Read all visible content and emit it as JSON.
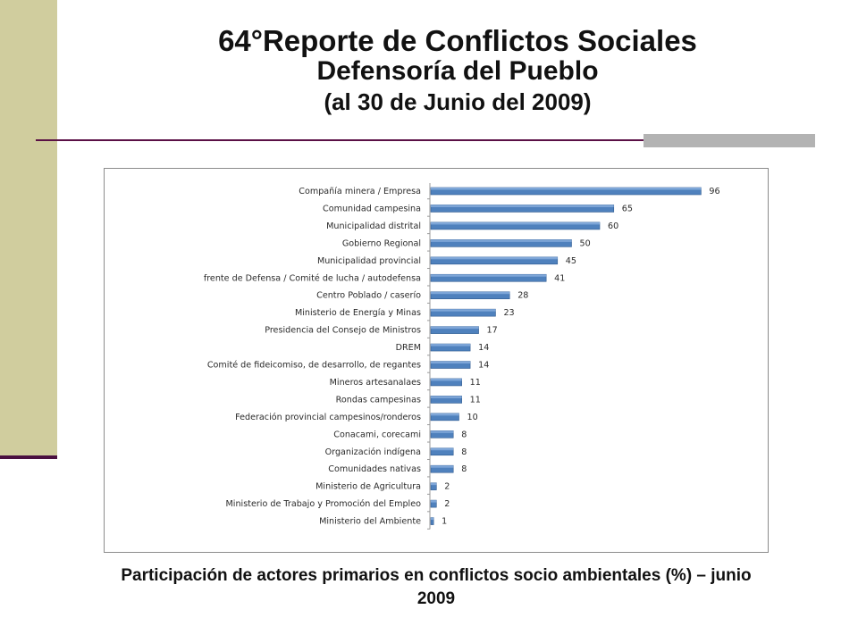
{
  "slide": {
    "title_line1": "64°Reporte de Conflictos Sociales",
    "title_line2": "Defensoría del Pueblo",
    "title_line3": "(al 30 de Junio del 2009)",
    "caption": "Participación de actores primarios en conflictos socio ambientales (%) – junio 2009"
  },
  "colors": {
    "bar": "#4f81bd",
    "bar_top": "#7ea6d8",
    "bar_edge": "#2f5a8f"
  },
  "chart_data": {
    "type": "bar",
    "orientation": "horizontal",
    "title": "",
    "xlabel": "",
    "ylabel": "",
    "xlim": [
      0,
      100
    ],
    "grid": false,
    "categories": [
      "Compañía minera / Empresa",
      "Comunidad campesina",
      "Municipalidad distrital",
      "Gobierno Regional",
      "Municipalidad provincial",
      "frente de Defensa / Comité de lucha / autodefensa",
      "Centro Poblado / caserío",
      "Ministerio de Energía y Minas",
      "Presidencia del Consejo de Ministros",
      "DREM",
      "Comité de fideicomiso, de desarrollo, de regantes",
      "Mineros artesanalaes",
      "Rondas campesinas",
      "Federación provincial campesinos/ronderos",
      "Conacami, corecami",
      "Organización indígena",
      "Comunidades nativas",
      "Ministerio de Agricultura",
      "Ministerio de Trabajo y Promoción del Empleo",
      "Ministerio del Ambiente"
    ],
    "values": [
      96,
      65,
      60,
      50,
      45,
      41,
      28,
      23,
      17,
      14,
      14,
      11,
      11,
      10,
      8,
      8,
      8,
      2,
      2,
      1
    ]
  }
}
